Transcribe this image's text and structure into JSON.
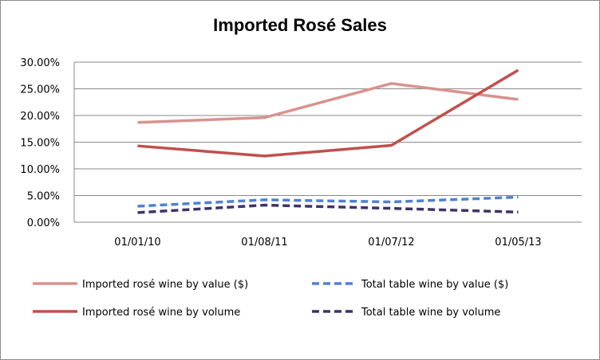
{
  "chart_data": {
    "type": "line",
    "title": "Imported Rosé Sales",
    "xlabel": "",
    "ylabel": "",
    "categories": [
      "01/01/10",
      "01/08/11",
      "01/07/12",
      "01/05/13"
    ],
    "yticks": [
      "0.00%",
      "5.00%",
      "10.00%",
      "15.00%",
      "20.00%",
      "25.00%",
      "30.00%"
    ],
    "ylim": [
      0,
      30
    ],
    "grid": true,
    "legend_position": "bottom",
    "series": [
      {
        "name": "Imported rosé wine by value ($)",
        "values": [
          18.7,
          19.6,
          26.0,
          23.0
        ],
        "color": "#d9928e",
        "dash": "solid"
      },
      {
        "name": "Total table wine by value ($)",
        "values": [
          3.0,
          4.2,
          3.8,
          4.7
        ],
        "color": "#4f81d1",
        "dash": "dashed"
      },
      {
        "name": "Imported rosé wine by volume",
        "values": [
          14.3,
          12.4,
          14.4,
          28.5
        ],
        "color": "#c0504d",
        "dash": "solid"
      },
      {
        "name": "Total table wine by volume",
        "values": [
          1.8,
          3.2,
          2.6,
          1.9
        ],
        "color": "#3f3268",
        "dash": "dashed"
      }
    ]
  }
}
